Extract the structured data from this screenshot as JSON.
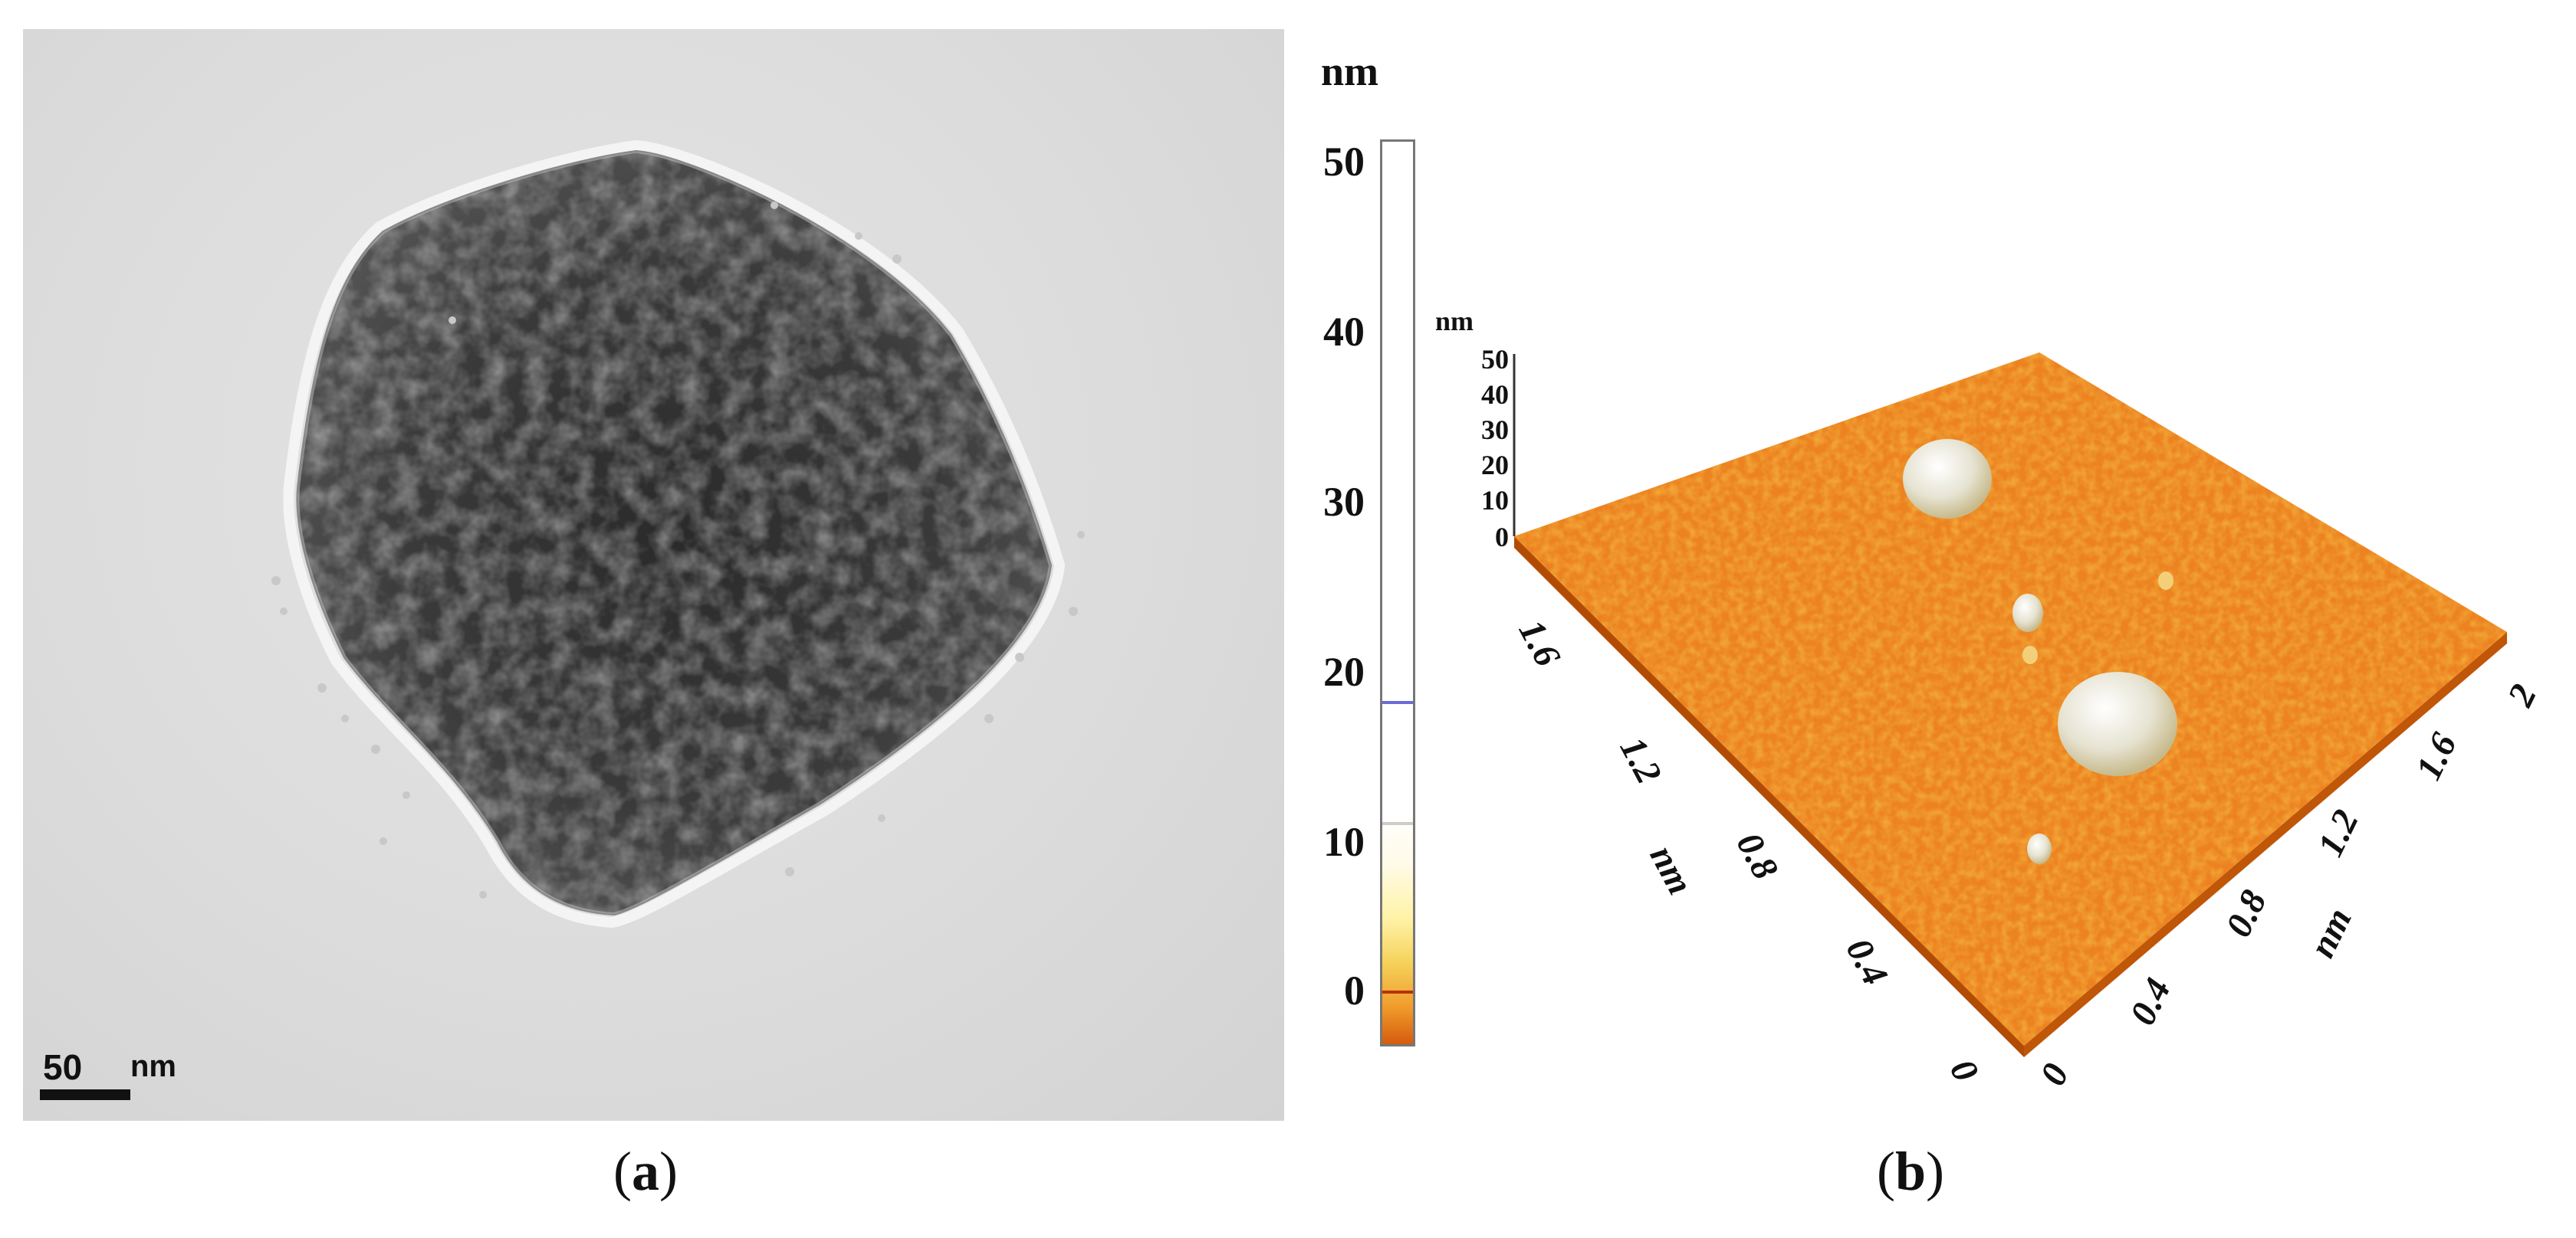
{
  "panel_a": {
    "scale_bar_value": "50",
    "scale_bar_unit": "nm",
    "caption_open": "(",
    "caption_letter": "a",
    "caption_close": ")"
  },
  "colorbar": {
    "unit": "nm",
    "ticks": [
      "50",
      "40",
      "30",
      "20",
      "10",
      "0"
    ]
  },
  "panel_b": {
    "z_unit": "nm",
    "z_ticks": [
      "50",
      "40",
      "30",
      "20",
      "10",
      "0"
    ],
    "y_axis_ticks": [
      "1.6",
      "1.2",
      "0.8",
      "0.4",
      "0"
    ],
    "y_axis_label": "nm",
    "x_axis_ticks": [
      "0",
      "0.4",
      "0.8",
      "1.2",
      "1.6",
      "2"
    ],
    "x_axis_label": "nm",
    "caption_open": "(",
    "caption_letter": "b",
    "caption_close": ")"
  },
  "colors": {
    "afm_surface": "#f08a1e",
    "afm_surface_dark": "#c8580a",
    "colorbar_marker": "#6b6bd6"
  }
}
